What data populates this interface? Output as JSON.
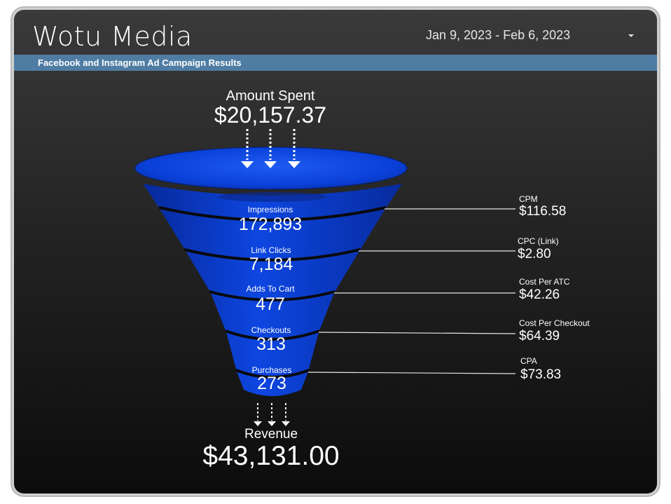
{
  "header": {
    "brand": "Wotu Media",
    "date_range": "Jan 9, 2023 - Feb 6, 2023",
    "subtitle": "Facebook and Instagram Ad Campaign Results"
  },
  "funnel": {
    "top": {
      "label": "Amount Spent",
      "value": "$20,157.37"
    },
    "stages": [
      {
        "label": "Impressions",
        "value": "172,893"
      },
      {
        "label": "Link Clicks",
        "value": "7,184"
      },
      {
        "label": "Adds To Cart",
        "value": "477"
      },
      {
        "label": "Checkouts",
        "value": "313"
      },
      {
        "label": "Purchases",
        "value": "273"
      }
    ],
    "bottom": {
      "label": "Revenue",
      "value": "$43,131.00"
    }
  },
  "metrics": [
    {
      "label": "CPM",
      "value": "$116.58"
    },
    {
      "label": "CPC (Link)",
      "value": "$2.80"
    },
    {
      "label": "Cost Per ATC",
      "value": "$42.26"
    },
    {
      "label": "Cost Per Checkout",
      "value": "$64.39"
    },
    {
      "label": "CPA",
      "value": "$73.83"
    }
  ],
  "colors": {
    "funnel_blue": "#0a40d8",
    "subbar": "#4f7ca3"
  },
  "icons": {
    "dropdown": "chevron-down-icon",
    "flow_arrows": "down-arrow-icon"
  }
}
